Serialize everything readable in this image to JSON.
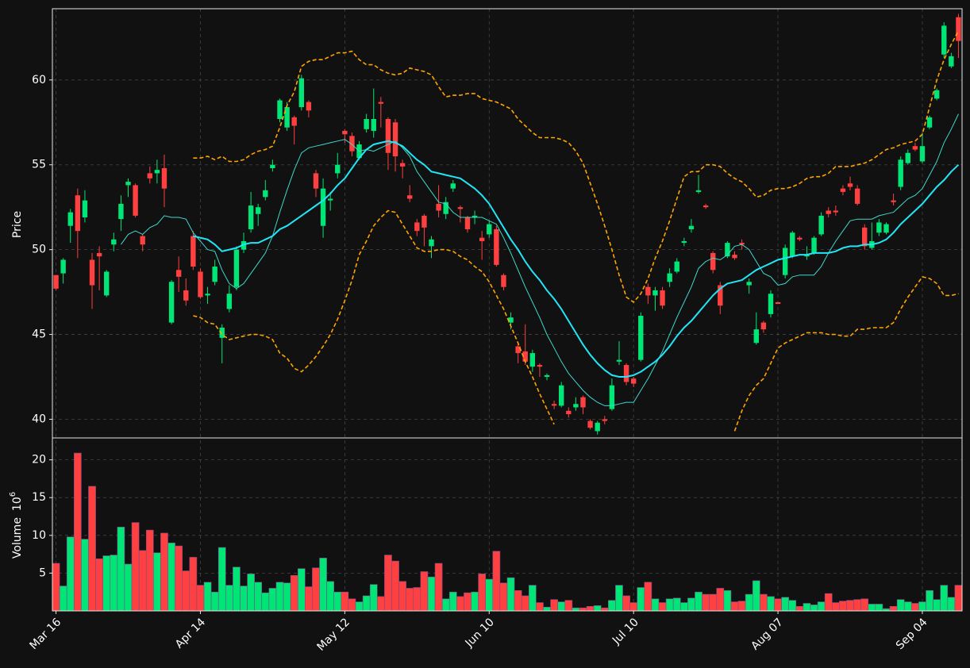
{
  "chart_data": {
    "type": "candlestick",
    "ylabel": "Price",
    "grid": true,
    "up_color": "#00e676",
    "down_color": "#ff4040",
    "ylim": [
      38.9,
      64.2
    ],
    "yticks": [
      40,
      45,
      50,
      55,
      60
    ],
    "categories": [
      "Mar 16",
      null,
      null,
      null,
      null,
      null,
      null,
      null,
      null,
      null,
      null,
      null,
      null,
      null,
      null,
      null,
      null,
      null,
      null,
      null,
      "Apr 14",
      null,
      null,
      null,
      null,
      null,
      null,
      null,
      null,
      null,
      null,
      null,
      null,
      null,
      null,
      null,
      null,
      null,
      null,
      null,
      "May 12",
      null,
      null,
      null,
      null,
      null,
      null,
      null,
      null,
      null,
      null,
      null,
      null,
      null,
      null,
      null,
      null,
      null,
      null,
      null,
      "Jun 10",
      null,
      null,
      null,
      null,
      null,
      null,
      null,
      null,
      null,
      null,
      null,
      null,
      null,
      null,
      null,
      null,
      null,
      null,
      null,
      "Jul 10",
      null,
      null,
      null,
      null,
      null,
      null,
      null,
      null,
      null,
      null,
      null,
      null,
      null,
      null,
      null,
      null,
      null,
      null,
      null,
      "Aug 07",
      null,
      null,
      null,
      null,
      null,
      null,
      null,
      null,
      null,
      null,
      null,
      null,
      null,
      null,
      null,
      null,
      null,
      null,
      null,
      "Sep 04",
      null,
      null,
      null,
      null,
      null
    ],
    "open": [
      48.5,
      48.6,
      51.4,
      53.2,
      51.9,
      49.4,
      49.8,
      47.3,
      50.3,
      51.8,
      53.8,
      53.8,
      50.8,
      54.5,
      54.5,
      54.8,
      45.7,
      48.8,
      47.6,
      50.8,
      48.7,
      47.3,
      48.1,
      44.8,
      46.5,
      47.8,
      50.0,
      51.2,
      52.1,
      53.1,
      54.8,
      57.7,
      57.2,
      57.8,
      58.4,
      58.7,
      54.5,
      51.4,
      52.9,
      54.5,
      57.0,
      56.7,
      55.4,
      57.1,
      57.0,
      58.7,
      57.7,
      57.5,
      55.1,
      53.2,
      51.6,
      52.0,
      50.2,
      52.7,
      52.1,
      53.6,
      52.5,
      51.9,
      51.9,
      50.7,
      50.9,
      51.2,
      48.5,
      45.7,
      44.3,
      44.0,
      43.1,
      43.2,
      42.5,
      40.9,
      40.8,
      40.5,
      40.7,
      41.3,
      39.9,
      39.3,
      40.0,
      40.6,
      43.4,
      43.2,
      42.4,
      43.5,
      47.8,
      47.3,
      47.6,
      48.1,
      48.7,
      50.4,
      51.2,
      53.4,
      52.6,
      49.8,
      47.9,
      49.6,
      49.7,
      50.4,
      47.9,
      44.5,
      45.7,
      46.2,
      46.9,
      48.5,
      49.6,
      50.7,
      49.6,
      49.8,
      50.9,
      52.3,
      52.3,
      53.6,
      53.9,
      53.6,
      51.3,
      50.1,
      51.0,
      51.0,
      52.9,
      53.7,
      55.1,
      56.1,
      55.2,
      57.2,
      58.9,
      61.5,
      60.8,
      63.7
    ],
    "high": [
      48.5,
      49.5,
      52.4,
      53.6,
      53.5,
      49.8,
      50.2,
      48.8,
      51.0,
      53.2,
      54.2,
      53.9,
      50.9,
      54.9,
      55.3,
      55.6,
      48.2,
      49.6,
      48.3,
      51.1,
      48.9,
      47.8,
      49.4,
      45.6,
      47.9,
      50.2,
      51.0,
      53.4,
      52.7,
      54.1,
      55.3,
      58.9,
      58.7,
      57.9,
      60.3,
      58.8,
      54.7,
      54.2,
      53.4,
      55.7,
      57.1,
      56.9,
      56.4,
      58.0,
      59.5,
      59.0,
      57.8,
      57.7,
      55.3,
      53.8,
      51.8,
      52.1,
      50.8,
      53.8,
      53.1,
      54.1,
      52.6,
      52.0,
      52.3,
      51.1,
      51.7,
      51.4,
      48.6,
      46.3,
      44.5,
      45.6,
      44.1,
      43.3,
      42.7,
      41.1,
      42.2,
      40.7,
      41.3,
      41.4,
      40.0,
      39.9,
      40.2,
      42.4,
      44.6,
      43.3,
      42.5,
      46.3,
      48.0,
      47.8,
      47.8,
      48.9,
      49.5,
      50.7,
      51.8,
      54.4,
      52.7,
      49.9,
      48.1,
      50.5,
      49.9,
      50.6,
      48.3,
      46.3,
      45.8,
      47.6,
      46.9,
      50.3,
      51.1,
      50.8,
      50.2,
      50.8,
      52.2,
      52.5,
      52.6,
      53.8,
      54.3,
      53.8,
      51.5,
      51.6,
      51.8,
      51.6,
      53.3,
      55.5,
      55.9,
      56.3,
      56.9,
      57.9,
      59.5,
      63.4,
      61.6,
      63.9
    ],
    "low": [
      47.6,
      48.0,
      50.4,
      49.5,
      51.6,
      46.5,
      47.6,
      47.2,
      49.9,
      51.1,
      53.1,
      51.9,
      49.9,
      53.9,
      53.9,
      52.5,
      45.6,
      47.5,
      46.7,
      48.8,
      47.1,
      46.8,
      47.9,
      43.3,
      46.3,
      47.6,
      49.8,
      51.0,
      51.4,
      52.9,
      54.6,
      57.5,
      57.0,
      56.2,
      58.2,
      57.8,
      53.1,
      50.7,
      52.3,
      54.2,
      56.3,
      55.5,
      55.3,
      56.9,
      56.6,
      57.2,
      54.7,
      54.6,
      54.2,
      52.8,
      50.8,
      50.2,
      49.5,
      51.9,
      51.8,
      53.4,
      51.6,
      51.0,
      51.5,
      49.4,
      50.7,
      49.0,
      47.6,
      45.3,
      43.3,
      43.2,
      42.8,
      42.5,
      42.3,
      40.6,
      40.7,
      40.1,
      40.5,
      40.3,
      39.4,
      39.1,
      39.7,
      40.5,
      43.2,
      42.0,
      41.9,
      43.4,
      46.8,
      46.4,
      46.5,
      47.8,
      48.6,
      50.2,
      51.0,
      53.3,
      52.4,
      48.6,
      46.2,
      49.5,
      49.4,
      50.0,
      47.4,
      44.4,
      45.1,
      46.0,
      46.8,
      48.3,
      49.5,
      50.5,
      49.4,
      49.7,
      50.8,
      51.9,
      52.0,
      53.2,
      53.5,
      52.6,
      50.0,
      50.0,
      50.8,
      50.9,
      52.6,
      53.5,
      55.0,
      55.8,
      55.1,
      57.1,
      58.8,
      61.3,
      60.7,
      61.3
    ],
    "close": [
      47.7,
      49.4,
      52.2,
      51.1,
      52.9,
      47.9,
      49.6,
      48.7,
      50.6,
      52.7,
      54.0,
      52.0,
      50.3,
      54.2,
      54.7,
      53.6,
      48.1,
      48.4,
      47.0,
      49.0,
      47.2,
      47.4,
      49.0,
      45.4,
      47.4,
      50.0,
      50.5,
      52.6,
      52.5,
      53.5,
      55.0,
      58.8,
      58.4,
      57.3,
      60.1,
      58.2,
      53.6,
      53.6,
      53.0,
      55.0,
      56.8,
      55.8,
      56.2,
      57.7,
      57.7,
      58.6,
      55.7,
      55.5,
      54.9,
      53.0,
      51.1,
      51.3,
      50.6,
      52.3,
      52.8,
      53.9,
      52.4,
      51.2,
      52.0,
      50.5,
      51.5,
      49.1,
      47.8,
      46.0,
      43.9,
      43.4,
      43.9,
      43.1,
      42.6,
      40.8,
      42.0,
      40.3,
      40.9,
      40.7,
      39.5,
      39.8,
      39.9,
      42.0,
      43.5,
      42.2,
      42.1,
      46.1,
      47.3,
      47.6,
      46.7,
      48.6,
      49.3,
      50.5,
      51.4,
      53.5,
      52.5,
      48.8,
      46.7,
      50.4,
      49.5,
      50.3,
      48.1,
      45.3,
      45.3,
      47.4,
      46.8,
      50.1,
      51.0,
      50.6,
      49.7,
      50.7,
      52.0,
      52.1,
      52.2,
      53.4,
      53.7,
      52.7,
      50.2,
      50.5,
      51.6,
      51.5,
      52.8,
      55.3,
      55.7,
      55.9,
      56.1,
      57.8,
      59.4,
      63.2,
      61.4,
      62.3
    ],
    "lines": [
      {
        "color": "#3fd9cc",
        "width": 1,
        "dashed": false,
        "values": [
          null,
          null,
          null,
          null,
          null,
          null,
          null,
          null,
          null,
          50.3,
          50.9,
          51.1,
          50.9,
          51.3,
          51.5,
          52.0,
          51.9,
          51.9,
          51.8,
          51.0,
          50.5,
          50.0,
          49.9,
          48.8,
          48.0,
          47.7,
          48.0,
          48.6,
          49.2,
          49.8,
          50.8,
          52.2,
          53.5,
          54.7,
          55.7,
          56.0,
          56.1,
          56.2,
          56.3,
          56.4,
          56.5,
          56.2,
          55.8,
          55.9,
          55.8,
          56.0,
          56.2,
          56.4,
          56.0,
          55.5,
          54.6,
          54.0,
          53.4,
          52.8,
          52.7,
          52.2,
          51.9,
          51.9,
          51.9,
          51.9,
          51.7,
          51.5,
          50.7,
          49.8,
          48.8,
          47.8,
          46.9,
          46.0,
          45.0,
          44.2,
          43.4,
          42.7,
          42.2,
          41.7,
          41.3,
          41.0,
          40.8,
          40.8,
          40.9,
          41.0,
          41.0,
          41.7,
          42.4,
          43.2,
          44.0,
          45.0,
          46.0,
          46.9,
          47.8,
          48.9,
          49.3,
          49.5,
          49.4,
          49.7,
          50.2,
          50.3,
          50.0,
          49.3,
          48.6,
          48.4,
          47.9,
          48.0,
          48.4,
          48.5,
          48.5,
          48.5,
          49.0,
          49.8,
          50.5,
          51.1,
          51.7,
          51.8,
          51.8,
          51.8,
          52.0,
          52.1,
          52.2,
          52.6,
          53.0,
          53.2,
          53.6,
          54.4,
          55.2,
          56.3,
          57.1,
          58.0
        ]
      },
      {
        "color": "#22e5f7",
        "width": 2,
        "dashed": false,
        "values": [
          null,
          null,
          null,
          null,
          null,
          null,
          null,
          null,
          null,
          null,
          null,
          null,
          null,
          null,
          null,
          null,
          null,
          null,
          null,
          50.8,
          50.7,
          50.6,
          50.3,
          49.9,
          50.0,
          50.1,
          50.3,
          50.4,
          50.4,
          50.6,
          50.8,
          51.2,
          51.4,
          51.7,
          52.0,
          52.3,
          52.6,
          52.9,
          53.3,
          53.8,
          54.2,
          54.8,
          55.4,
          55.9,
          56.2,
          56.3,
          56.4,
          56.3,
          56.1,
          55.7,
          55.3,
          55.0,
          54.6,
          54.5,
          54.4,
          54.3,
          54.2,
          53.9,
          53.6,
          53.2,
          52.7,
          52.0,
          51.3,
          50.6,
          50.0,
          49.3,
          48.7,
          48.2,
          47.6,
          47.1,
          46.5,
          45.8,
          45.1,
          44.4,
          43.8,
          43.3,
          42.9,
          42.6,
          42.5,
          42.5,
          42.6,
          42.8,
          43.1,
          43.4,
          43.8,
          44.3,
          44.9,
          45.4,
          45.8,
          46.3,
          46.8,
          47.3,
          47.7,
          48.0,
          48.1,
          48.2,
          48.5,
          48.8,
          49.0,
          49.2,
          49.4,
          49.5,
          49.6,
          49.7,
          49.7,
          49.8,
          49.8,
          49.8,
          49.9,
          50.1,
          50.2,
          50.2,
          50.3,
          50.3,
          50.4,
          50.6,
          51.0,
          51.5,
          51.9,
          52.3,
          52.7,
          53.2,
          53.7,
          54.1,
          54.6,
          55.0
        ]
      },
      {
        "color": "#ffa500",
        "width": 1.6,
        "dashed": true,
        "values": [
          null,
          null,
          null,
          null,
          null,
          null,
          null,
          null,
          null,
          null,
          null,
          null,
          null,
          null,
          null,
          null,
          null,
          null,
          null,
          55.4,
          55.4,
          55.5,
          55.3,
          55.5,
          55.2,
          55.2,
          55.3,
          55.6,
          55.8,
          55.9,
          56.1,
          57.2,
          58.5,
          59.3,
          60.8,
          61.1,
          61.2,
          61.2,
          61.4,
          61.6,
          61.6,
          61.7,
          61.2,
          60.9,
          60.9,
          60.6,
          60.4,
          60.3,
          60.4,
          60.7,
          60.6,
          60.5,
          60.3,
          59.6,
          59.0,
          59.1,
          59.1,
          59.2,
          59.2,
          58.9,
          58.8,
          58.7,
          58.5,
          58.3,
          57.7,
          57.3,
          56.9,
          56.6,
          56.6,
          56.6,
          56.5,
          56.3,
          55.8,
          55.1,
          53.9,
          52.7,
          51.4,
          50.0,
          48.5,
          47.2,
          46.9,
          47.4,
          48.3,
          49.5,
          50.5,
          51.7,
          53.0,
          54.3,
          54.6,
          54.6,
          55.0,
          55.0,
          54.9,
          54.5,
          54.2,
          54.0,
          53.6,
          53.1,
          53.2,
          53.5,
          53.6,
          53.6,
          53.7,
          53.9,
          54.2,
          54.3,
          54.3,
          54.5,
          54.9,
          54.9,
          54.9,
          55.0,
          55.1,
          55.3,
          55.6,
          55.9,
          56.0,
          56.2,
          56.3,
          56.4,
          56.8,
          58.4,
          60.0,
          61.2,
          62.1,
          62.9
        ]
      },
      {
        "color": "#ffa500",
        "width": 1.6,
        "dashed": true,
        "values": [
          null,
          null,
          null,
          null,
          null,
          null,
          null,
          null,
          null,
          null,
          null,
          null,
          null,
          null,
          null,
          null,
          null,
          null,
          null,
          46.1,
          46.0,
          45.7,
          45.6,
          45.0,
          44.7,
          44.8,
          44.9,
          45.0,
          45.0,
          44.9,
          44.7,
          43.9,
          43.6,
          43.0,
          42.8,
          43.2,
          43.7,
          44.3,
          45.0,
          45.9,
          47.0,
          48.2,
          49.7,
          50.5,
          51.4,
          51.9,
          52.3,
          52.2,
          51.5,
          50.8,
          50.1,
          49.9,
          49.9,
          50.0,
          50.0,
          49.9,
          49.6,
          49.4,
          49.0,
          48.7,
          48.1,
          47.3,
          46.5,
          45.5,
          44.5,
          43.4,
          42.5,
          41.5,
          40.6,
          39.7,
          null,
          null,
          null,
          null,
          null,
          null,
          null,
          null,
          null,
          null,
          null,
          null,
          null,
          null,
          null,
          null,
          null,
          null,
          null,
          null,
          null,
          null,
          null,
          null,
          39.3,
          40.5,
          41.4,
          42.0,
          42.4,
          43.3,
          44.2,
          44.5,
          44.7,
          44.9,
          45.1,
          45.1,
          45.1,
          45.0,
          45.0,
          44.9,
          44.9,
          45.3,
          45.3,
          45.4,
          45.4,
          45.4,
          45.7,
          46.5,
          47.2,
          47.8,
          48.4,
          48.3,
          48.0,
          47.3,
          47.3,
          47.4
        ]
      }
    ],
    "volume": {
      "ylabel": "Volume",
      "multiplier": {
        "base": 10,
        "exponent": 6
      },
      "ylim": [
        0,
        22.9
      ],
      "yticks": [
        5,
        10,
        15,
        20
      ],
      "values": [
        6.3,
        3.3,
        9.8,
        20.9,
        9.5,
        16.5,
        6.9,
        7.3,
        7.4,
        11.1,
        6.2,
        11.7,
        8.0,
        10.7,
        7.7,
        10.3,
        9.0,
        8.6,
        5.3,
        7.1,
        3.4,
        3.8,
        2.5,
        8.4,
        3.4,
        5.8,
        3.3,
        4.9,
        3.8,
        2.4,
        3.0,
        3.8,
        3.7,
        4.7,
        5.6,
        3.2,
        5.7,
        7.0,
        3.9,
        2.5,
        2.5,
        1.6,
        1.2,
        2.0,
        3.5,
        1.9,
        7.4,
        6.6,
        3.9,
        3.0,
        3.1,
        5.2,
        4.5,
        6.3,
        1.6,
        2.5,
        1.9,
        2.4,
        2.5,
        4.9,
        4.2,
        7.9,
        3.7,
        4.4,
        2.7,
        2.0,
        3.4,
        1.1,
        0.5,
        1.5,
        1.2,
        1.4,
        0.4,
        0.4,
        0.6,
        0.7,
        0.4,
        1.4,
        3.4,
        2.0,
        1.1,
        3.1,
        3.8,
        1.6,
        1.1,
        1.6,
        1.7,
        1.1,
        1.7,
        2.5,
        2.2,
        2.2,
        3.0,
        2.7,
        1.2,
        1.3,
        2.2,
        4.0,
        2.2,
        1.9,
        1.6,
        1.8,
        1.4,
        0.6,
        1.0,
        0.8,
        1.2,
        2.3,
        1.1,
        1.3,
        1.4,
        1.5,
        1.6,
        0.9,
        0.9,
        0.3,
        0.6,
        1.5,
        1.2,
        1.0,
        1.2,
        2.7,
        1.5,
        3.4,
        1.8,
        3.4
      ]
    }
  }
}
